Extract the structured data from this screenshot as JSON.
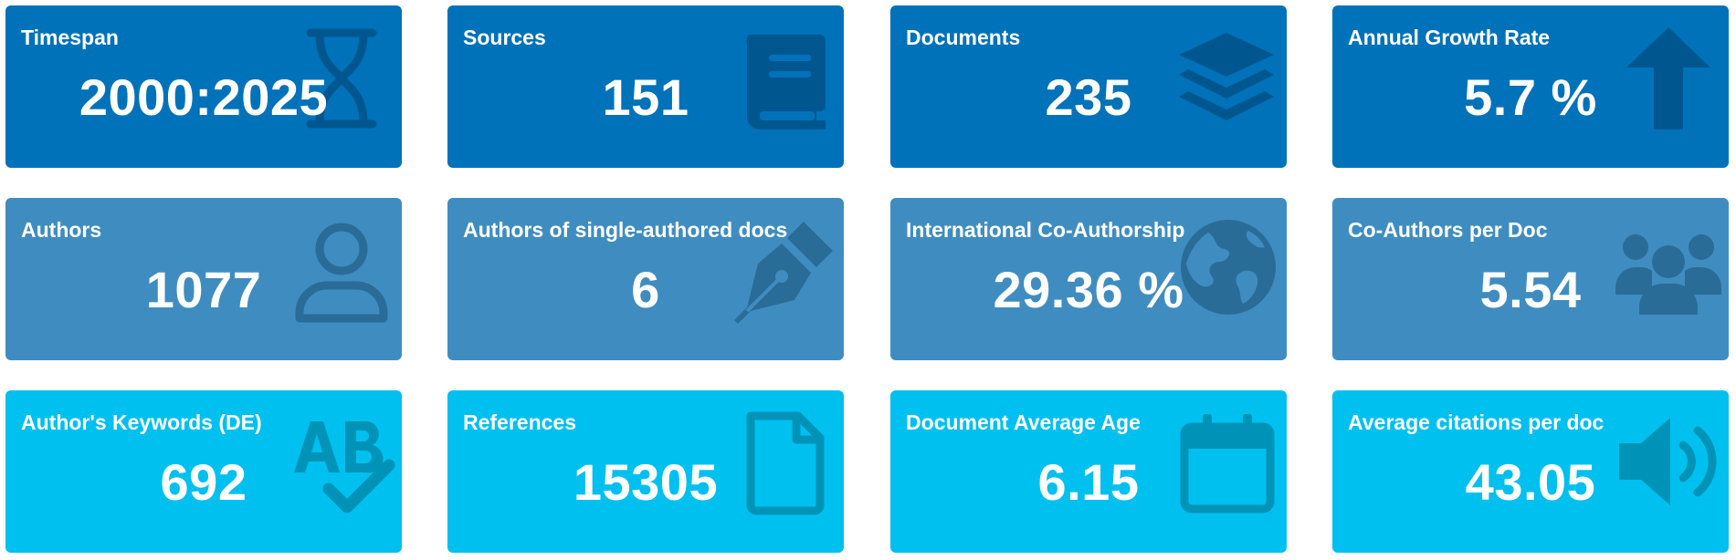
{
  "colors": {
    "row1_bg": "#0072b9",
    "row1_icon": "#00578f",
    "row2_bg": "#3f8dc0",
    "row2_icon": "#2a6c98",
    "row3_bg": "#00c0ef",
    "row3_icon": "#0093b8"
  },
  "boxes": {
    "timespan": {
      "title": "Timespan",
      "value": "2000:2025",
      "icon": "hourglass-icon"
    },
    "sources": {
      "title": "Sources",
      "value": "151",
      "icon": "book-icon"
    },
    "documents": {
      "title": "Documents",
      "value": "235",
      "icon": "layers-icon"
    },
    "growth": {
      "title": "Annual Growth Rate",
      "value": "5.7 %",
      "icon": "arrow-up-icon"
    },
    "authors": {
      "title": "Authors",
      "value": "1077",
      "icon": "user-icon"
    },
    "single": {
      "title": "Authors of single-authored docs",
      "value": "6",
      "icon": "pen-nib-icon"
    },
    "intl": {
      "title": "International Co-Authorship",
      "value": "29.36 %",
      "icon": "globe-icon"
    },
    "coauthors": {
      "title": "Co-Authors per Doc",
      "value": "5.54",
      "icon": "users-icon"
    },
    "keywords": {
      "title": "Author's Keywords (DE)",
      "value": "692",
      "icon": "spell-check-icon"
    },
    "references": {
      "title": "References",
      "value": "15305",
      "icon": "file-icon"
    },
    "age": {
      "title": "Document Average Age",
      "value": "6.15",
      "icon": "calendar-icon"
    },
    "citations": {
      "title": "Average citations per doc",
      "value": "43.05",
      "icon": "volume-icon"
    }
  }
}
